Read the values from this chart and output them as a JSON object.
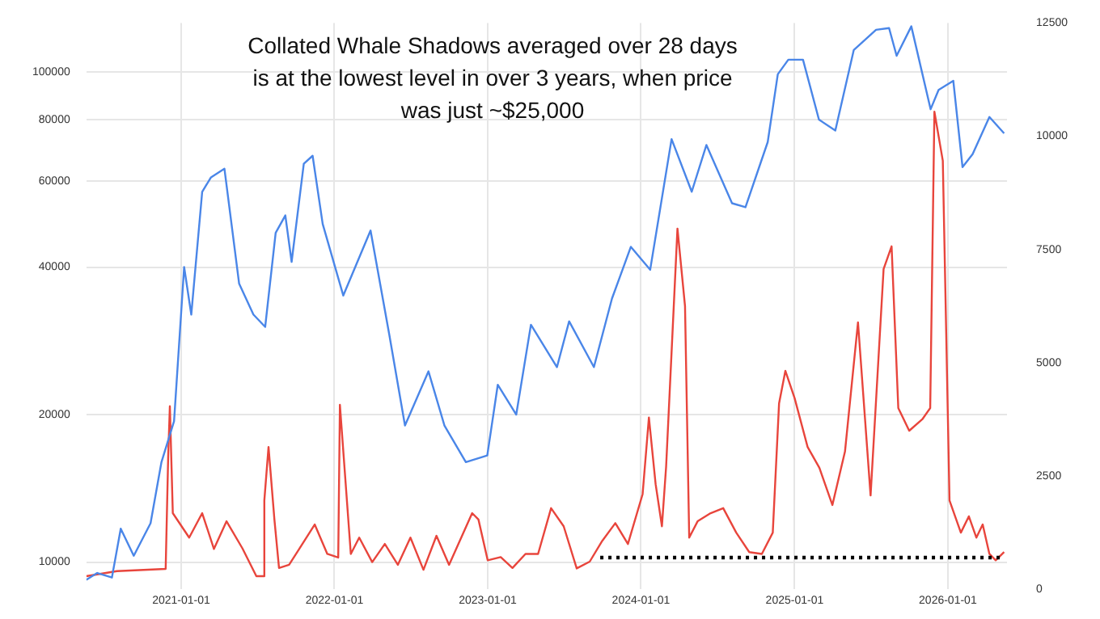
{
  "chart_data": {
    "type": "line",
    "title": "Collated Whale Shadows averaged over 28 days is at the lowest level in over 3 years, when price was just ~$25,000",
    "log": "y",
    "grid": true,
    "xlim": [
      "2020-05-20",
      "2026-05-22"
    ],
    "xticks": [
      "2021-01-01",
      "2022-01-01",
      "2023-01-01",
      "2024-01-01",
      "2025-01-01",
      "2026-01-01"
    ],
    "ylim": [
      8800,
      126000
    ],
    "yticks": [
      10000,
      20000,
      40000,
      60000,
      80000,
      100000
    ],
    "y2lim": [
      0,
      12500
    ],
    "y2ticks": [
      0,
      2500,
      5000,
      7500,
      10000,
      12500
    ],
    "series": [
      {
        "type": "line",
        "axis": "y",
        "color": "#4a86e8",
        "x": [
          "2020-05-20",
          "2020-06-15",
          "2020-07-20",
          "2020-08-10",
          "2020-09-10",
          "2020-10-20",
          "2020-11-15",
          "2020-12-15",
          "2021-01-08",
          "2021-01-25",
          "2021-02-20",
          "2021-03-13",
          "2021-04-14",
          "2021-05-19",
          "2021-06-22",
          "2021-07-20",
          "2021-08-14",
          "2021-09-06",
          "2021-09-21",
          "2021-10-20",
          "2021-11-10",
          "2021-12-04",
          "2022-01-22",
          "2022-03-28",
          "2022-05-12",
          "2022-06-18",
          "2022-08-13",
          "2022-09-20",
          "2022-11-10",
          "2022-12-31",
          "2023-01-25",
          "2023-03-10",
          "2023-04-14",
          "2023-06-15",
          "2023-07-14",
          "2023-09-11",
          "2023-10-24",
          "2023-12-08",
          "2024-01-23",
          "2024-03-14",
          "2024-05-01",
          "2024-06-05",
          "2024-08-05",
          "2024-09-06",
          "2024-10-29",
          "2024-11-22",
          "2024-12-17",
          "2025-01-21",
          "2025-02-28",
          "2025-04-08",
          "2025-05-22",
          "2025-07-14",
          "2025-08-14",
          "2025-09-01",
          "2025-10-06",
          "2025-11-21",
          "2025-12-10",
          "2026-01-14",
          "2026-02-05",
          "2026-03-01",
          "2026-04-10",
          "2026-05-15"
        ],
        "values": [
          9200,
          9500,
          9300,
          11700,
          10300,
          12000,
          16000,
          19400,
          40000,
          32000,
          57000,
          61000,
          63500,
          37000,
          32000,
          30200,
          47000,
          51000,
          41000,
          65000,
          67500,
          49000,
          35000,
          47500,
          29000,
          19000,
          24500,
          19000,
          16000,
          16500,
          23000,
          20000,
          30500,
          25000,
          31000,
          25000,
          34500,
          44000,
          39500,
          73000,
          57000,
          71000,
          54000,
          53000,
          72000,
          99000,
          106000,
          106000,
          80000,
          76000,
          111000,
          122000,
          123000,
          108000,
          124000,
          84000,
          92000,
          96000,
          64000,
          68000,
          81000,
          75000
        ]
      },
      {
        "type": "line",
        "axis": "y2",
        "color": "#e8453c",
        "x": [
          "2020-05-20",
          "2020-08-01",
          "2020-11-25",
          "2020-12-01",
          "2020-12-05",
          "2020-12-12",
          "2021-01-20",
          "2021-02-20",
          "2021-03-20",
          "2021-04-19",
          "2021-05-27",
          "2021-06-29",
          "2021-07-17",
          "2021-07-18",
          "2021-07-28",
          "2021-08-11",
          "2021-08-22",
          "2021-09-15",
          "2021-10-09",
          "2021-11-15",
          "2021-12-15",
          "2022-01-10",
          "2022-01-14",
          "2022-02-09",
          "2022-03-01",
          "2022-04-01",
          "2022-05-01",
          "2022-06-01",
          "2022-07-01",
          "2022-08-01",
          "2022-09-01",
          "2022-10-01",
          "2022-11-25",
          "2022-12-10",
          "2023-01-01",
          "2023-02-01",
          "2023-03-01",
          "2023-04-01",
          "2023-05-01",
          "2023-06-01",
          "2023-07-01",
          "2023-08-01",
          "2023-09-01",
          "2023-10-01",
          "2023-11-01",
          "2023-12-01",
          "2024-01-05",
          "2024-01-20",
          "2024-02-05",
          "2024-02-20",
          "2024-03-01",
          "2024-03-28",
          "2024-04-15",
          "2024-04-25",
          "2024-05-15",
          "2024-06-15",
          "2024-07-15",
          "2024-08-15",
          "2024-09-15",
          "2024-10-15",
          "2024-11-10",
          "2024-11-25",
          "2024-12-10",
          "2025-01-01",
          "2025-02-01",
          "2025-03-01",
          "2025-04-01",
          "2025-05-01",
          "2025-06-01",
          "2025-07-01",
          "2025-08-01",
          "2025-08-20",
          "2025-09-05",
          "2025-10-01",
          "2025-11-01",
          "2025-11-20",
          "2025-11-30",
          "2025-12-20",
          "2026-01-05",
          "2026-02-01",
          "2026-02-20",
          "2026-03-10",
          "2026-03-25",
          "2026-04-10",
          "2026-04-25",
          "2026-05-15"
        ],
        "values": [
          290,
          400,
          450,
          2930,
          4040,
          1680,
          1140,
          1680,
          890,
          1500,
          900,
          290,
          290,
          1960,
          3140,
          1540,
          470,
          540,
          890,
          1430,
          780,
          700,
          4070,
          780,
          1140,
          600,
          1000,
          540,
          1140,
          430,
          1180,
          540,
          1680,
          1540,
          640,
          710,
          470,
          780,
          780,
          1790,
          1390,
          460,
          610,
          1070,
          1460,
          1000,
          2100,
          3790,
          2320,
          1390,
          2710,
          7960,
          6250,
          1140,
          1500,
          1680,
          1790,
          1250,
          820,
          780,
          1250,
          4100,
          4820,
          4220,
          3140,
          2680,
          1860,
          3040,
          5890,
          2070,
          7070,
          7570,
          4000,
          3500,
          3750,
          4000,
          10540,
          9460,
          1960,
          1250,
          1610,
          1140,
          1430,
          780,
          640,
          820
        ]
      },
      {
        "type": "line",
        "axis": "y2",
        "color": "#000000",
        "line_style": "dotted",
        "x": [
          "2023-09-26",
          "2026-05-15"
        ],
        "values": [
          700,
          700
        ]
      }
    ]
  }
}
